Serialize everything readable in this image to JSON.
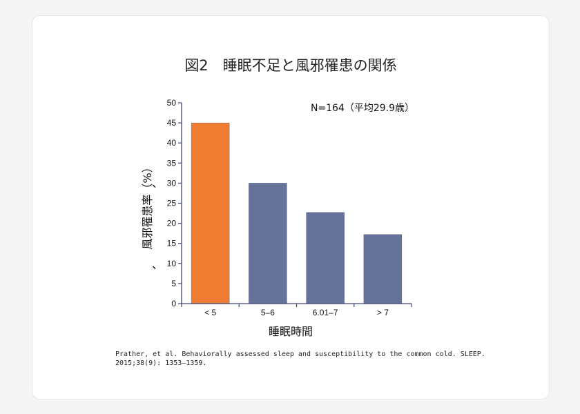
{
  "chart_data": {
    "type": "bar",
    "title": "図2　睡眠不足と風邪罹患の関係",
    "annotation": "N=164（平均29.9歳）",
    "xlabel": "睡眠時間",
    "ylabel": "風邪罹患率（%）",
    "ylabel_marks": "、",
    "categories": [
      "< 5",
      "5–6",
      "6.01–7",
      "> 7"
    ],
    "values": [
      45,
      30,
      22.7,
      17.2
    ],
    "ylim": [
      0,
      50
    ],
    "yticks": [
      0,
      5,
      10,
      15,
      20,
      25,
      30,
      35,
      40,
      45,
      50
    ],
    "colors": [
      "#ee7d31",
      "#66729a",
      "#66729a",
      "#66729a"
    ],
    "axis_color": "#3b4373",
    "grid": false,
    "legend": "none"
  },
  "citation": "Prather, et al.  Behaviorally assessed sleep and susceptibility to the common cold. SLEEP. 2015;38(9): 1353–1359."
}
